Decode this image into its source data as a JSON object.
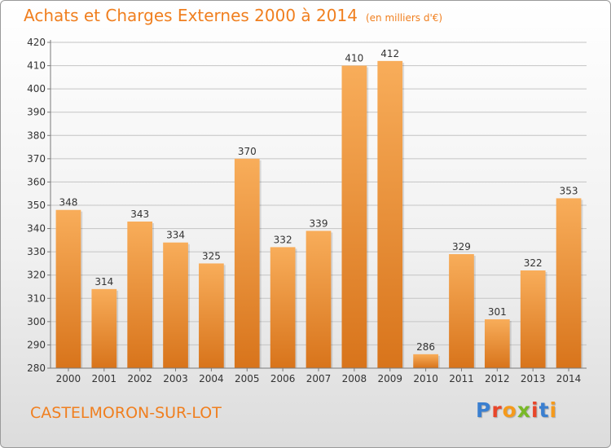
{
  "title": "Achats et Charges Externes 2000 à 2014",
  "subtitle": "(en milliers d'€)",
  "place": "CASTELMORON-SUR-LOT",
  "logo": {
    "letters": [
      "P",
      "r",
      "o",
      "x",
      "i",
      "t",
      "i"
    ],
    "colors": [
      "#3a7fd0",
      "#e8462a",
      "#f59a1c",
      "#79b928",
      "#e8462a",
      "#3a7fd0",
      "#f59a1c"
    ]
  },
  "colors": {
    "accent": "#f07f1f",
    "bar_top": "#f8ad5a",
    "bar_bottom": "#d8741b",
    "grid": "#c4c4c4",
    "axis": "#7a7a7a",
    "text": "#333333"
  },
  "chart_data": {
    "type": "bar",
    "categories": [
      "2000",
      "2001",
      "2002",
      "2003",
      "2004",
      "2005",
      "2006",
      "2007",
      "2008",
      "2009",
      "2010",
      "2011",
      "2012",
      "2013",
      "2014"
    ],
    "values": [
      348,
      314,
      343,
      334,
      325,
      370,
      332,
      339,
      410,
      412,
      286,
      329,
      301,
      322,
      353
    ],
    "ylim": [
      280,
      420
    ],
    "yticks": [
      280,
      290,
      300,
      310,
      320,
      330,
      340,
      350,
      360,
      370,
      380,
      390,
      400,
      410,
      420
    ],
    "grid": true,
    "data_labels": true
  }
}
